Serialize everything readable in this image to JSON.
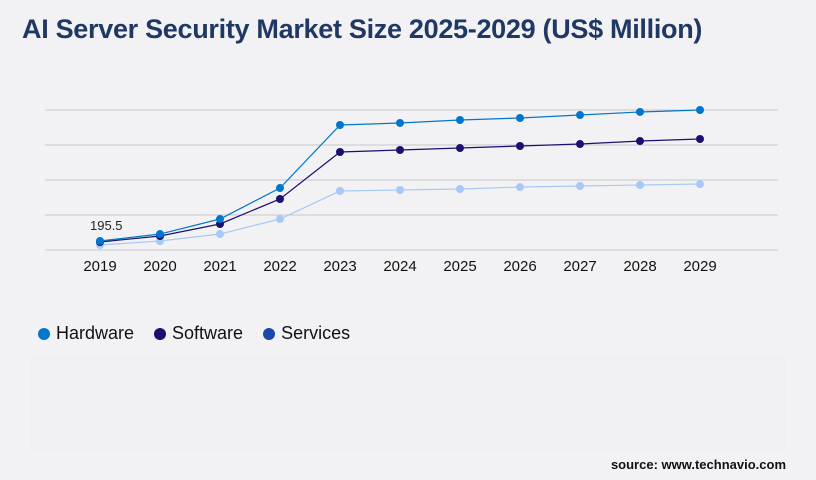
{
  "title": "AI Server Security Market Size 2025-2029 (US$ Million)",
  "source": "source: www.technavio.com",
  "chart_data": {
    "type": "line",
    "title": "AI Server Security Market Size 2025-2029 (US$ Million)",
    "xlabel": "",
    "ylabel": "",
    "categories": [
      "2019",
      "2020",
      "2021",
      "2022",
      "2023",
      "2024",
      "2025",
      "2026",
      "2027",
      "2028",
      "2029"
    ],
    "ylim": [
      0,
      3041
    ],
    "grid": true,
    "legend": "bottom-left",
    "series": [
      {
        "name": "Hardware",
        "color": "#0077cc",
        "values": [
          195.5,
          347,
          673,
          1347,
          2715,
          2759,
          2824,
          2867,
          2932,
          2998,
          3041
        ]
      },
      {
        "name": "Software",
        "color": "#1a1070",
        "values": [
          174,
          304,
          565,
          1108,
          2129,
          2172,
          2215,
          2259,
          2302,
          2367,
          2411
        ]
      },
      {
        "name": "Services",
        "color": "#a8c8f8",
        "values": [
          109,
          195,
          347,
          673,
          1282,
          1303,
          1325,
          1368,
          1390,
          1412,
          1433
        ]
      }
    ],
    "annotations": [
      {
        "x": "2019",
        "text": "195.5"
      }
    ]
  },
  "legend_dot_colors": [
    "#0077cc",
    "#1a1070",
    "#1a47a8"
  ]
}
